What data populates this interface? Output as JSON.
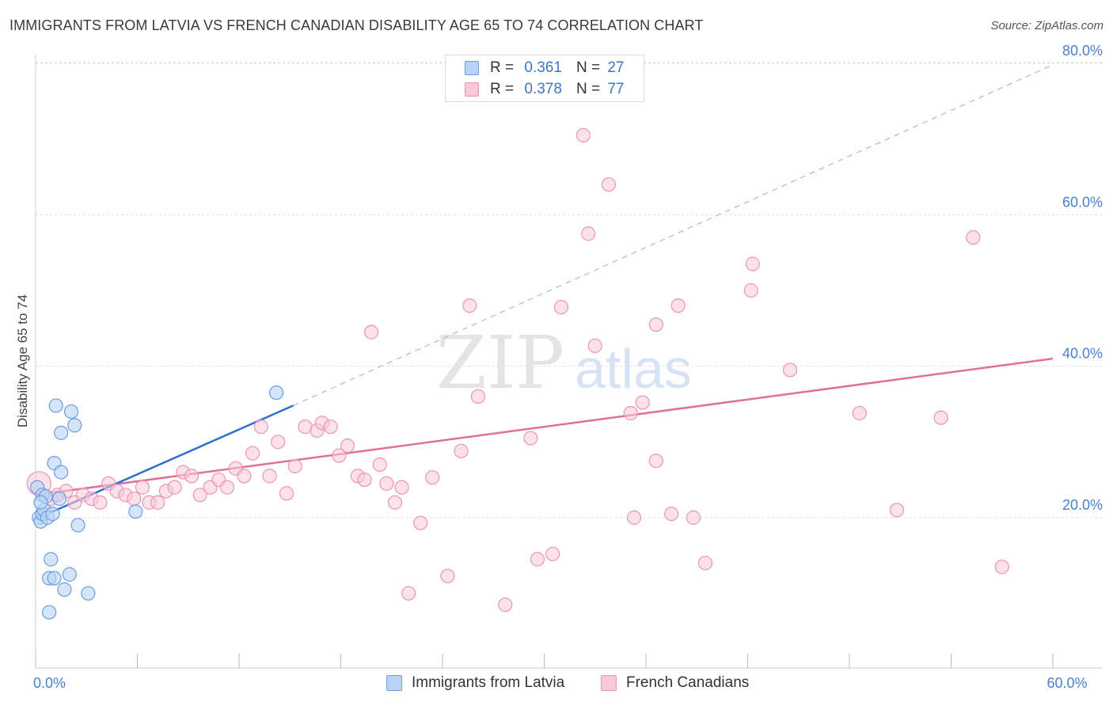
{
  "header": {
    "title": "IMMIGRANTS FROM LATVIA VS FRENCH CANADIAN DISABILITY AGE 65 TO 74 CORRELATION CHART",
    "source": "Source: ZipAtlas.com"
  },
  "watermark": {
    "zip": "ZIP",
    "atlas": "atlas"
  },
  "legend": {
    "rows": [
      {
        "r_label": "R =",
        "r_value": "0.361",
        "n_label": "N =",
        "n_value": "27"
      },
      {
        "r_label": "R =",
        "r_value": "0.378",
        "n_label": "N =",
        "n_value": "77"
      }
    ]
  },
  "bottom_legend": {
    "items": [
      {
        "label": "Immigrants from Latvia"
      },
      {
        "label": "French Canadians"
      }
    ]
  },
  "colors": {
    "blue_fill": "#b9d3f5",
    "blue_stroke": "#6d9de0",
    "blue_line": "#2f6fcf",
    "pink_fill": "#f9c8d8",
    "pink_stroke": "#e996b3",
    "pink_line": "#e0709a",
    "tick_text": "#4a7fd1",
    "grid": "#dddddd"
  },
  "chart_data": {
    "type": "scatter",
    "title": "IMMIGRANTS FROM LATVIA VS FRENCH CANADIAN DISABILITY AGE 65 TO 74 CORRELATION CHART",
    "xlabel": "",
    "ylabel": "Disability Age 65 to 74",
    "xlim": [
      0,
      60
    ],
    "ylim": [
      0,
      83
    ],
    "x_tick_labels": [
      {
        "value": 0,
        "label": "0.0%"
      },
      {
        "value": 60,
        "label": "60.0%"
      }
    ],
    "y_tick_labels": [
      {
        "value": 20,
        "label": "20.0%"
      },
      {
        "value": 40,
        "label": "40.0%"
      },
      {
        "value": 60,
        "label": "60.0%"
      },
      {
        "value": 80,
        "label": "80.0%"
      }
    ],
    "x_minor_ticks": [
      0,
      6,
      12,
      18,
      24,
      30,
      36,
      42,
      48,
      54,
      60
    ],
    "grid": true,
    "series": [
      {
        "name": "Immigrants from Latvia",
        "r": 0.361,
        "n": 27,
        "points": [
          [
            0.1,
            24.0
          ],
          [
            0.2,
            20.0
          ],
          [
            0.3,
            19.5
          ],
          [
            0.4,
            20.5
          ],
          [
            0.4,
            23.0
          ],
          [
            0.5,
            21.0
          ],
          [
            0.6,
            22.8
          ],
          [
            0.7,
            20.0
          ],
          [
            0.8,
            12.0
          ],
          [
            0.8,
            7.5
          ],
          [
            0.9,
            14.5
          ],
          [
            1.0,
            20.5
          ],
          [
            1.1,
            27.2
          ],
          [
            1.1,
            12.0
          ],
          [
            1.2,
            34.8
          ],
          [
            1.4,
            22.5
          ],
          [
            1.5,
            31.2
          ],
          [
            1.5,
            26.0
          ],
          [
            1.7,
            10.5
          ],
          [
            2.0,
            12.5
          ],
          [
            2.1,
            34.0
          ],
          [
            2.3,
            32.2
          ],
          [
            2.5,
            19.0
          ],
          [
            3.1,
            10.0
          ],
          [
            5.9,
            20.8
          ],
          [
            14.2,
            36.5
          ],
          [
            0.3,
            22.0
          ]
        ],
        "trend": {
          "x1": 0,
          "y1": 19.8,
          "x2": 15.2,
          "y2": 34.8,
          "dash_to_x": 60,
          "dash_to_y": 79.8
        }
      },
      {
        "name": "French Canadians",
        "r": 0.378,
        "n": 77,
        "points": [
          [
            0.2,
            24.5
          ],
          [
            0.9,
            22.5
          ],
          [
            1.3,
            23.0
          ],
          [
            1.8,
            23.5
          ],
          [
            2.3,
            22.0
          ],
          [
            2.8,
            23.0
          ],
          [
            3.3,
            22.5
          ],
          [
            3.8,
            22.0
          ],
          [
            4.3,
            24.5
          ],
          [
            4.8,
            23.5
          ],
          [
            5.3,
            23.0
          ],
          [
            5.8,
            22.5
          ],
          [
            6.3,
            24.0
          ],
          [
            6.7,
            22.0
          ],
          [
            7.2,
            22.0
          ],
          [
            7.7,
            23.5
          ],
          [
            8.2,
            24.0
          ],
          [
            8.7,
            26.0
          ],
          [
            9.2,
            25.5
          ],
          [
            9.7,
            23.0
          ],
          [
            10.3,
            24.0
          ],
          [
            10.8,
            25.0
          ],
          [
            11.3,
            24.0
          ],
          [
            11.8,
            26.5
          ],
          [
            12.3,
            25.5
          ],
          [
            12.8,
            28.5
          ],
          [
            13.3,
            32.0
          ],
          [
            13.8,
            25.5
          ],
          [
            14.3,
            30.0
          ],
          [
            14.8,
            23.2
          ],
          [
            15.3,
            26.8
          ],
          [
            15.9,
            32.0
          ],
          [
            16.6,
            31.5
          ],
          [
            16.9,
            32.5
          ],
          [
            17.4,
            32.0
          ],
          [
            17.9,
            28.2
          ],
          [
            18.4,
            29.5
          ],
          [
            19.0,
            25.5
          ],
          [
            19.4,
            25.0
          ],
          [
            19.8,
            44.5
          ],
          [
            20.3,
            27.0
          ],
          [
            20.7,
            24.5
          ],
          [
            21.2,
            22.0
          ],
          [
            21.6,
            24.0
          ],
          [
            22.7,
            19.3
          ],
          [
            23.4,
            25.3
          ],
          [
            22.0,
            10.0
          ],
          [
            24.3,
            12.3
          ],
          [
            25.1,
            28.8
          ],
          [
            25.6,
            48.0
          ],
          [
            26.1,
            36.0
          ],
          [
            27.7,
            8.5
          ],
          [
            29.2,
            30.5
          ],
          [
            29.6,
            14.5
          ],
          [
            30.5,
            15.2
          ],
          [
            31.0,
            47.8
          ],
          [
            32.3,
            70.5
          ],
          [
            32.6,
            57.5
          ],
          [
            33.0,
            42.7
          ],
          [
            33.8,
            64.0
          ],
          [
            35.1,
            33.8
          ],
          [
            35.3,
            20.0
          ],
          [
            35.8,
            35.2
          ],
          [
            36.6,
            45.5
          ],
          [
            36.6,
            27.5
          ],
          [
            37.5,
            20.5
          ],
          [
            37.9,
            48.0
          ],
          [
            38.8,
            20.0
          ],
          [
            39.5,
            14.0
          ],
          [
            42.2,
            50.0
          ],
          [
            42.3,
            53.5
          ],
          [
            44.5,
            39.5
          ],
          [
            48.6,
            33.8
          ],
          [
            50.8,
            21.0
          ],
          [
            53.4,
            33.2
          ],
          [
            55.3,
            57.0
          ],
          [
            57.0,
            13.5
          ]
        ],
        "trend": {
          "x1": 0,
          "y1": 23.0,
          "x2": 60,
          "y2": 41.0
        }
      }
    ]
  }
}
